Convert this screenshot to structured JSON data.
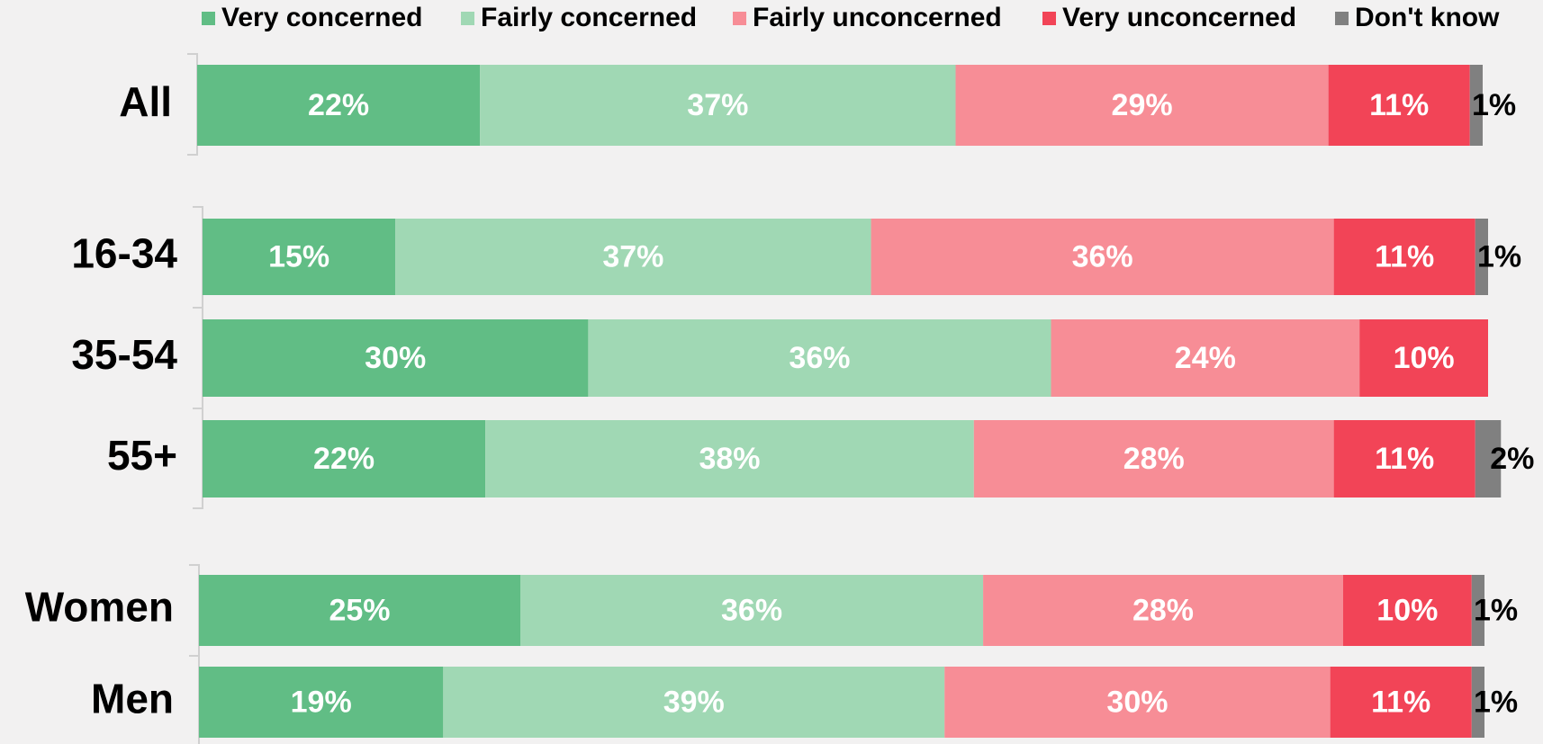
{
  "chart_data": {
    "type": "stacked_bar",
    "orientation": "horizontal",
    "categories": [
      "All",
      "16-34",
      "35-54",
      "55+",
      "Women",
      "Men"
    ],
    "series": [
      {
        "name": "Very concerned",
        "color": "#61bd85",
        "values": [
          22,
          15,
          30,
          22,
          25,
          19
        ],
        "value_labels": [
          "22%",
          "15%",
          "30%",
          "22%",
          "25%",
          "19%"
        ]
      },
      {
        "name": "Fairly concerned",
        "color": "#a0d8b4",
        "values": [
          37,
          37,
          36,
          38,
          36,
          39
        ],
        "value_labels": [
          "37%",
          "37%",
          "36%",
          "38%",
          "36%",
          "39%"
        ]
      },
      {
        "name": "Fairly unconcerned",
        "color": "#f78d96",
        "values": [
          29,
          36,
          24,
          28,
          28,
          30
        ],
        "value_labels": [
          "29%",
          "36%",
          "24%",
          "28%",
          "28%",
          "30%"
        ]
      },
      {
        "name": "Very unconcerned",
        "color": "#f24457",
        "values": [
          11,
          11,
          10,
          11,
          10,
          11
        ],
        "value_labels": [
          "11%",
          "11%",
          "10%",
          "11%",
          "10%",
          "11%"
        ]
      },
      {
        "name": "Don't know",
        "color": "#808080",
        "values": [
          1,
          1,
          null,
          2,
          1,
          1
        ],
        "value_labels": [
          "1%",
          "1%",
          null,
          "2%",
          "1%",
          "1%"
        ]
      }
    ],
    "legend": "top"
  }
}
